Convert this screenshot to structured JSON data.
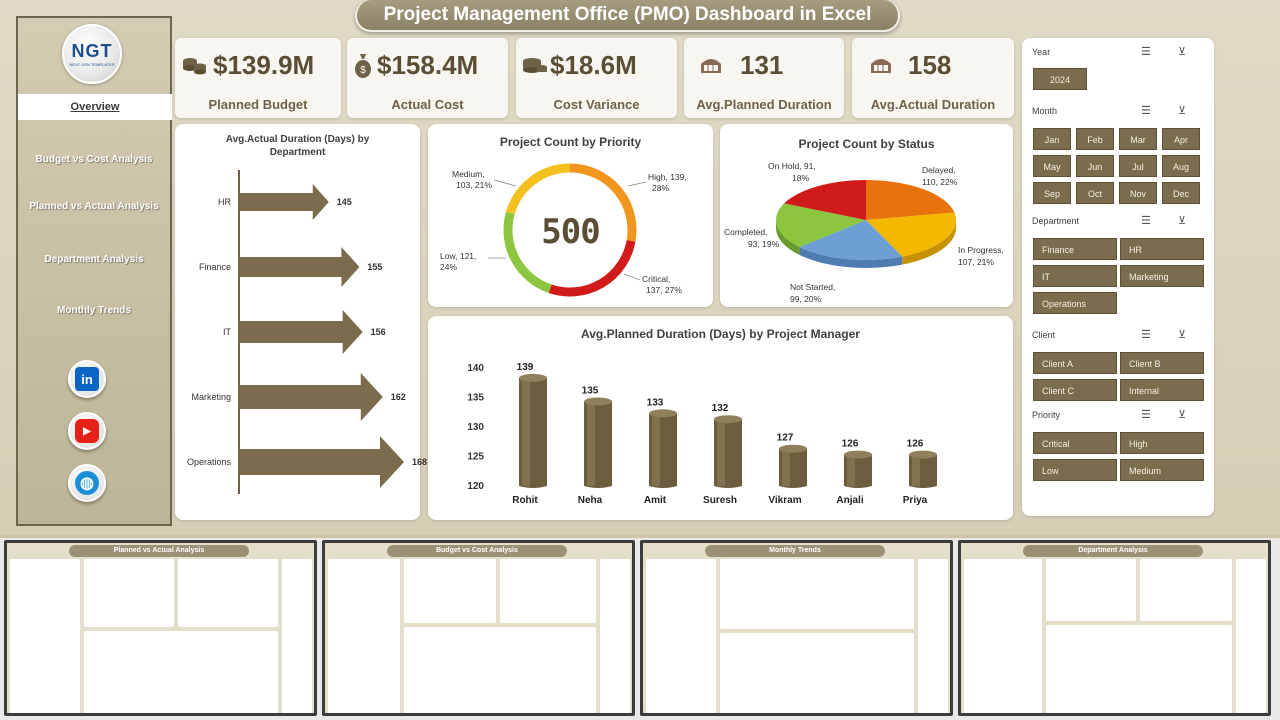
{
  "title": "Project Management Office (PMO) Dashboard in Excel",
  "logo": {
    "text": "NGT",
    "subtitle": "NEXT GEN TEMPLATES"
  },
  "nav": [
    {
      "label": "Overview",
      "active": true
    },
    {
      "label": "Budget vs Cost Analysis",
      "active": false
    },
    {
      "label": "Planned vs Actual  Analysis",
      "active": false
    },
    {
      "label": "Department Analysis",
      "active": false
    },
    {
      "label": "Monthly Trends",
      "active": false
    }
  ],
  "social": [
    {
      "icon": "linkedin-icon",
      "glyph": "in",
      "color": "#0a66c2"
    },
    {
      "icon": "youtube-icon",
      "glyph": "▶",
      "color": "#e62117"
    },
    {
      "icon": "globe-icon",
      "glyph": "◍",
      "color": "#1a8fd8"
    }
  ],
  "kpis": [
    {
      "value": "$139.9M",
      "label": "Planned Budget",
      "icon": "money-stack-icon"
    },
    {
      "value": "$158.4M",
      "label": "Actual Cost",
      "icon": "money-bag-icon"
    },
    {
      "value": "$18.6M",
      "label": "Cost Variance",
      "icon": "coins-icon"
    },
    {
      "value": "131",
      "label": "Avg.Planned Duration",
      "icon": "calendar-icon"
    },
    {
      "value": "158",
      "label": "Avg.Actual Duration",
      "icon": "calendar-icon"
    }
  ],
  "charts": {
    "dept_title_1": "Avg.Actual Duration (Days) by",
    "dept_title_2": "Department",
    "priority_title": "Project Count by Priority",
    "priority_total": "500",
    "status_title": "Project Count by Status",
    "pm_title": "Avg.Planned Duration (Days) by Project Manager"
  },
  "chart_data": [
    {
      "type": "bar",
      "title": "Avg.Actual Duration (Days) by Department",
      "categories": [
        "HR",
        "Finance",
        "IT",
        "Marketing",
        "Operations"
      ],
      "values": [
        145,
        155,
        156,
        162,
        168
      ],
      "orientation": "horizontal"
    },
    {
      "type": "pie",
      "title": "Project Count by Priority",
      "center_label": "500",
      "labels": [
        "High",
        "Critical",
        "Low",
        "Medium"
      ],
      "values": [
        139,
        137,
        121,
        103
      ],
      "percents": [
        "28%",
        "27%",
        "24%",
        "21%"
      ],
      "colors": [
        "#f0961e",
        "#d11a1a",
        "#8cc63f",
        "#f4c01e"
      ],
      "label_lines": [
        [
          "High, 139,",
          "28%"
        ],
        [
          "Critical,",
          "137, 27%"
        ],
        [
          "Low, 121,",
          "24%"
        ],
        [
          "Medium,",
          "103, 21%"
        ]
      ]
    },
    {
      "type": "pie",
      "title": "Project Count by Status",
      "labels": [
        "Delayed",
        "In Progress",
        "Not Started",
        "Completed",
        "On Hold"
      ],
      "values": [
        110,
        107,
        99,
        93,
        91
      ],
      "percents": [
        "22%",
        "21%",
        "20%",
        "19%",
        "18%"
      ],
      "colors": [
        "#e8720c",
        "#f5b800",
        "#6d9ed6",
        "#8cc63f",
        "#d11a1a"
      ],
      "label_lines": [
        [
          "Delayed,",
          "110, 22%"
        ],
        [
          "In Progress,",
          "107, 21%"
        ],
        [
          "Not Started,",
          "99, 20%"
        ],
        [
          "Completed,",
          "93, 19%"
        ],
        [
          "On Hold, 91,",
          "18%"
        ]
      ]
    },
    {
      "type": "bar",
      "title": "Avg.Planned Duration (Days) by Project Manager",
      "categories": [
        "Rohit",
        "Neha",
        "Amit",
        "Suresh",
        "Vikram",
        "Anjali",
        "Priya"
      ],
      "values": [
        139,
        135,
        133,
        132,
        127,
        126,
        126
      ],
      "ylim": [
        120,
        140
      ],
      "yticks": [
        120,
        125,
        130,
        135,
        140
      ]
    }
  ],
  "slicers": [
    {
      "title": "Year",
      "items": [
        "2024"
      ]
    },
    {
      "title": "Month",
      "items": [
        "Jan",
        "Feb",
        "Mar",
        "Apr",
        "May",
        "Jun",
        "Jul",
        "Aug",
        "Sep",
        "Oct",
        "Nov",
        "Dec"
      ]
    },
    {
      "title": "Department",
      "items": [
        "Finance",
        "HR",
        "IT",
        "Marketing",
        "Operations"
      ]
    },
    {
      "title": "Client",
      "items": [
        "Client A",
        "Client B",
        "Client C",
        "Internal"
      ]
    },
    {
      "title": "Priority",
      "items": [
        "Critical",
        "High",
        "Low",
        "Medium"
      ]
    }
  ],
  "thumbnails": [
    {
      "title": "Planned vs Actual  Analysis"
    },
    {
      "title": "Budget vs Cost Analysis"
    },
    {
      "title": "Monthly Trends"
    },
    {
      "title": "Department Analysis"
    }
  ]
}
